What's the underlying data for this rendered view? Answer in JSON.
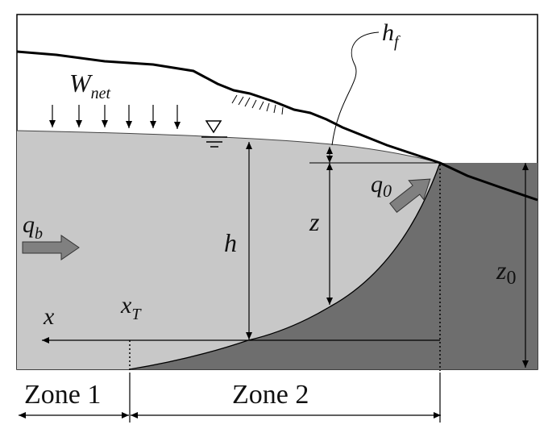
{
  "labels": {
    "w": "W",
    "w_sub": "net",
    "hf": "h",
    "hf_sub": "f",
    "q0": "q",
    "q0_sub": "0",
    "qb": "q",
    "qb_sub": "b",
    "h": "h",
    "z": "z",
    "z0": "z",
    "z0_sub": "0",
    "x": "x",
    "xt": "x",
    "xt_sub": "T"
  },
  "zones": {
    "zone1": "Zone 1",
    "zone2": "Zone 2"
  },
  "colors": {
    "aquifer_fresh": "#c8c8c8",
    "saltwater": "#6e6e6e",
    "arrow_fill": "#808080",
    "line": "#000000",
    "background": "#ffffff"
  },
  "icons": {
    "water_table_marker": "inverted-triangle-icon",
    "recharge_arrows": "down-arrow-icon",
    "vegetation": "grass-hatch-icon"
  }
}
